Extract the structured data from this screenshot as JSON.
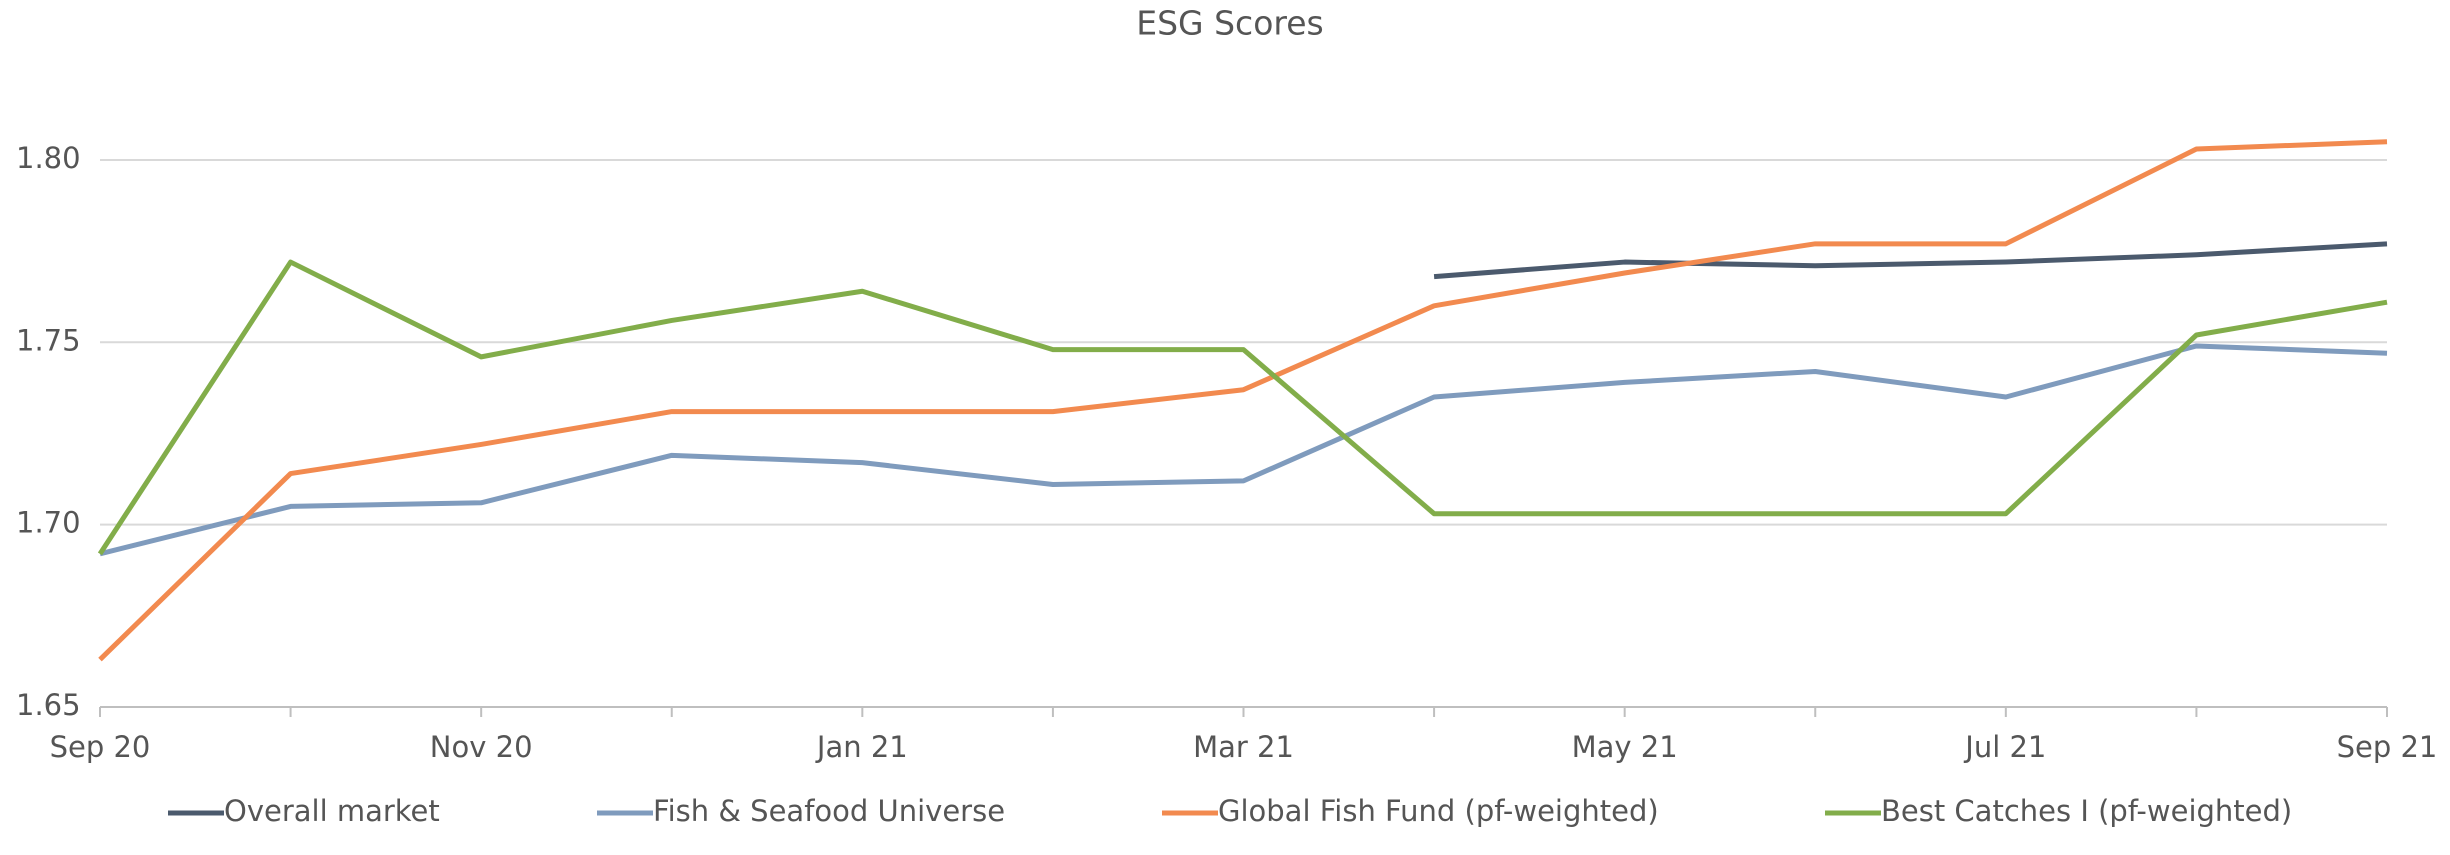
{
  "chart_data": {
    "type": "line",
    "title": "ESG Scores",
    "categories": [
      "Sep 20",
      null,
      "Nov 20",
      null,
      "Jan 21",
      null,
      "Mar 21",
      null,
      "May 21",
      null,
      "Jul 21",
      null,
      "Sep 21"
    ],
    "series": [
      {
        "name": "Overall market",
        "color": "#4b5a6d",
        "values": [
          null,
          null,
          null,
          null,
          null,
          null,
          null,
          1.768,
          1.772,
          1.771,
          1.772,
          1.774,
          1.777
        ]
      },
      {
        "name": "Fish & Seafood Universe",
        "color": "#7f9bbd",
        "values": [
          1.692,
          1.705,
          1.706,
          1.719,
          1.717,
          1.711,
          1.712,
          1.735,
          1.739,
          1.742,
          1.735,
          1.749,
          1.747
        ]
      },
      {
        "name": "Global Fish Fund (pf-weighted)",
        "color": "#f28a4f",
        "values": [
          1.663,
          1.714,
          1.722,
          1.731,
          1.731,
          1.731,
          1.737,
          1.76,
          1.769,
          1.777,
          1.777,
          1.803,
          1.805
        ]
      },
      {
        "name": "Best Catches I (pf-weighted)",
        "color": "#82ad4a",
        "values": [
          1.692,
          1.772,
          1.746,
          1.756,
          1.764,
          1.748,
          1.748,
          1.703,
          1.703,
          1.703,
          1.703,
          1.752,
          1.761
        ]
      }
    ],
    "ylim": [
      1.65,
      1.82
    ],
    "yticks": [
      1.65,
      {
        "value": 1.7,
        "label": "1.70"
      },
      1.75,
      {
        "value": 1.8,
        "label": "1.80"
      }
    ],
    "grid": true
  }
}
